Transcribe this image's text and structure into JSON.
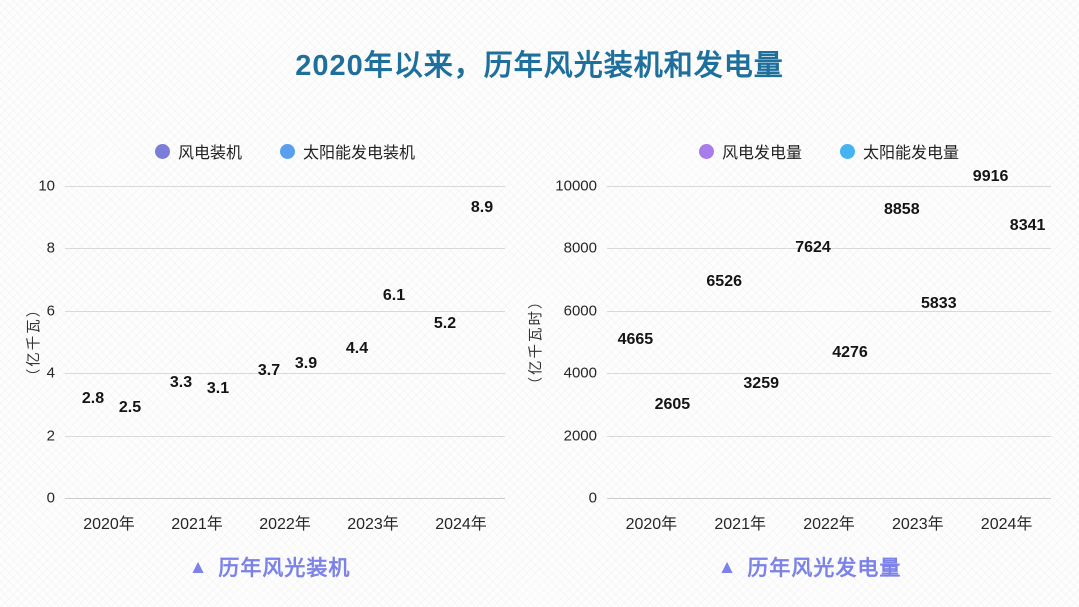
{
  "page": {
    "title": "2020年以来，历年风光装机和发电量"
  },
  "chart_data": [
    {
      "type": "line",
      "caption": "历年风光装机",
      "caption_marker": "▲",
      "categories": [
        "2020年",
        "2021年",
        "2022年",
        "2023年",
        "2024年"
      ],
      "series": [
        {
          "name": "风电装机",
          "color": "#7B7ED8",
          "values": [
            2.8,
            3.3,
            3.7,
            4.4,
            5.2
          ]
        },
        {
          "name": "太阳能发电装机",
          "color": "#5A9EF0",
          "values": [
            2.5,
            3.1,
            3.9,
            6.1,
            8.9
          ]
        }
      ],
      "ylabel": "（亿千瓦）",
      "xlabel": "",
      "ylim": [
        0,
        10
      ],
      "yticks": [
        0,
        2,
        4,
        6,
        8,
        10
      ],
      "grid": true,
      "legend_position": "top",
      "point_markers": "hidden",
      "value_labels": "shown"
    },
    {
      "type": "line",
      "caption": "历年风光发电量",
      "caption_marker": "▲",
      "categories": [
        "2020年",
        "2021年",
        "2022年",
        "2023年",
        "2024年"
      ],
      "series": [
        {
          "name": "风电发电量",
          "color": "#A87CEB",
          "values": [
            4665,
            6526,
            7624,
            8858,
            9916
          ]
        },
        {
          "name": "太阳能发电量",
          "color": "#45B3F2",
          "values": [
            2605,
            3259,
            4276,
            5833,
            8341
          ]
        }
      ],
      "ylabel": "（亿千瓦时）",
      "xlabel": "",
      "ylim": [
        0,
        10000
      ],
      "yticks": [
        0,
        2000,
        4000,
        6000,
        8000,
        10000
      ],
      "grid": true,
      "legend_position": "top",
      "point_markers": "hidden",
      "value_labels": "shown"
    }
  ],
  "style": {
    "title_color": "#1E6F9C",
    "caption_color": "#7C82E8",
    "gridline_color": "#D9D9D9",
    "label_color": "#141414"
  }
}
